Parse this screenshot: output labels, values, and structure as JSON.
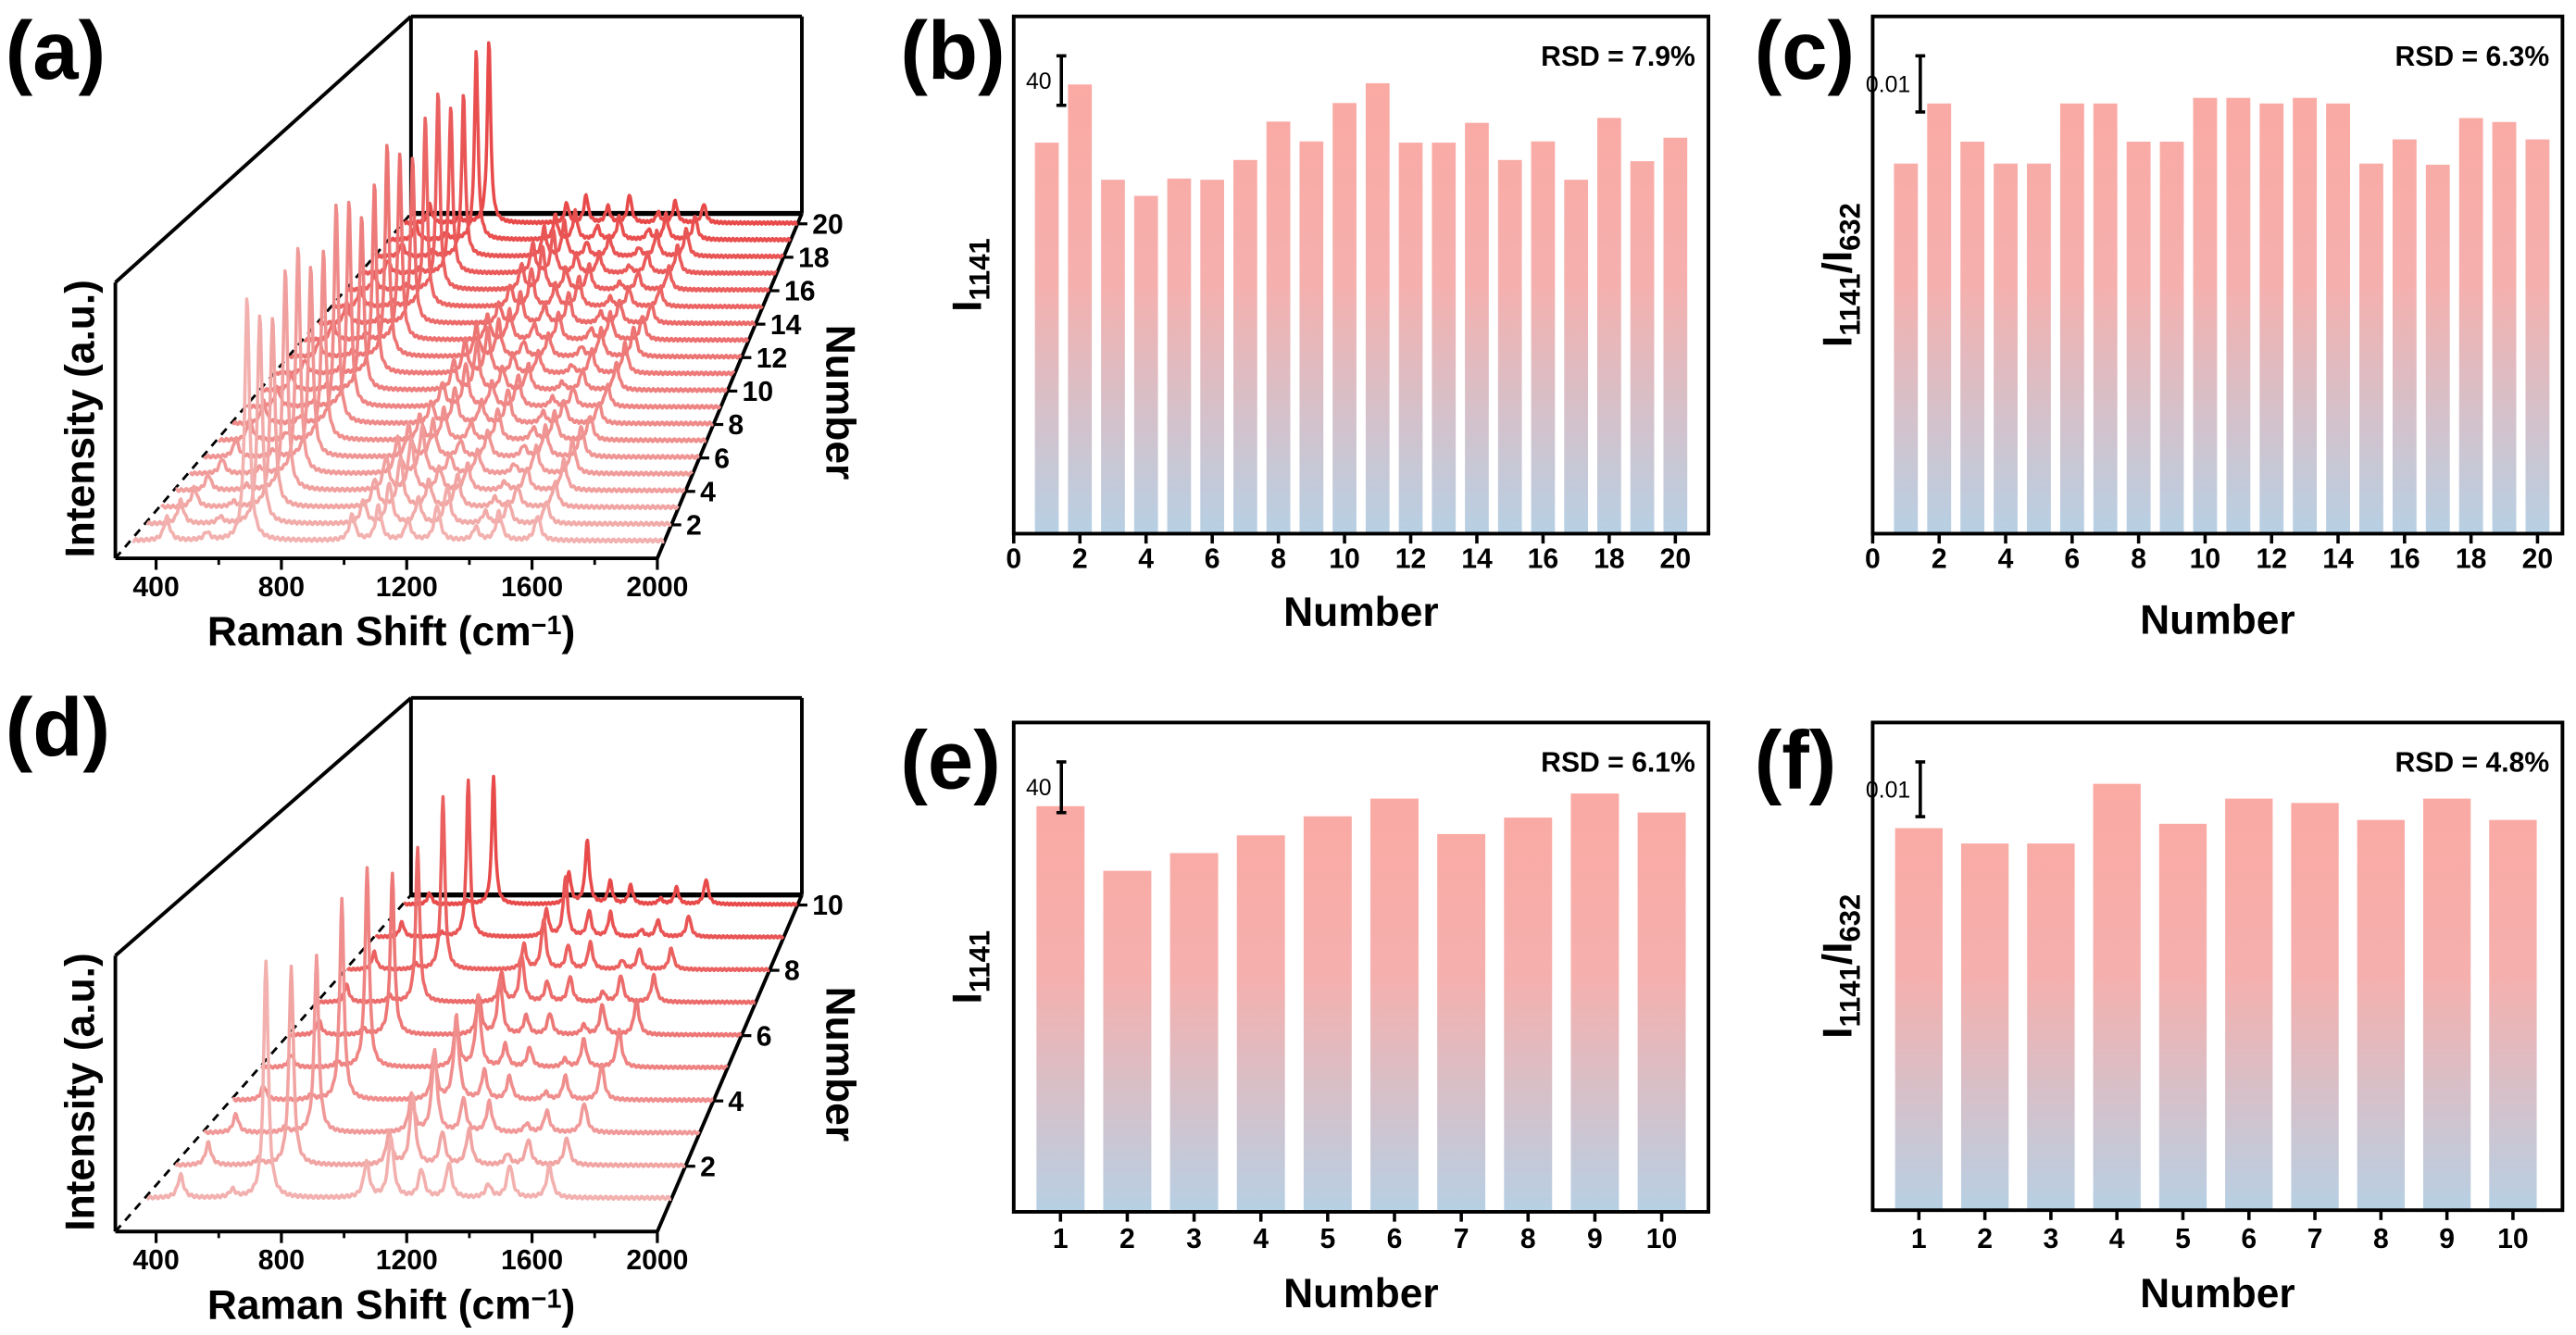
{
  "chart_data": [
    {
      "panel_label": "(a)",
      "type": "line",
      "subtype": "waterfall",
      "xlabel": [
        {
          "t": "Raman Shift (cm"
        },
        {
          "t": "−1",
          "sup": true
        },
        {
          "t": ")"
        }
      ],
      "ylabel": "Intensity (a.u.)",
      "zlabel": "Number",
      "xlim": [
        270,
        2000
      ],
      "x_ticks": [
        400,
        800,
        1200,
        1600,
        2000
      ],
      "x_minor_ticks": [
        600,
        1000,
        1400,
        1800
      ],
      "series_count": 20,
      "number_ticks": [
        2,
        4,
        6,
        8,
        10,
        12,
        14,
        16,
        18,
        20
      ],
      "peaks": [
        [
          390,
          0.09
        ],
        [
          520,
          0.03
        ],
        [
          650,
          1.0
        ],
        [
          990,
          0.14
        ],
        [
          1075,
          0.2
        ],
        [
          1170,
          0.1
        ],
        [
          1265,
          0.14
        ],
        [
          1390,
          0.05
        ],
        [
          1465,
          0.12
        ],
        [
          1590,
          0.13
        ]
      ],
      "colors": {
        "front": "#f2b0ae",
        "back": "#e84a4a"
      }
    },
    {
      "panel_label": "(b)",
      "type": "bar",
      "categories": [
        1,
        2,
        3,
        4,
        5,
        6,
        7,
        8,
        9,
        10,
        11,
        12,
        13,
        14,
        15,
        16,
        17,
        18,
        19,
        20
      ],
      "values": [
        316,
        363,
        286,
        273,
        287,
        286,
        302,
        333,
        317,
        348,
        364,
        316,
        316,
        332,
        302,
        317,
        286,
        336,
        301,
        320
      ],
      "xlabel": "Number",
      "ylabel": [
        {
          "t": "I"
        },
        {
          "t": "1141",
          "sub": true
        }
      ],
      "xlim": [
        0,
        21
      ],
      "ylim": [
        0,
        418
      ],
      "x_ticks": [
        0,
        2,
        4,
        6,
        8,
        10,
        12,
        14,
        16,
        18,
        20
      ],
      "scale_bar": {
        "label": "40",
        "value": 40
      },
      "annotation": "RSD = 7.9%",
      "colors": {
        "top": "#fba9a3",
        "bottom": "#b7d0e4"
      }
    },
    {
      "panel_label": "(c)",
      "type": "bar",
      "categories": [
        1,
        2,
        3,
        4,
        5,
        6,
        7,
        8,
        9,
        10,
        11,
        12,
        13,
        14,
        15,
        16,
        17,
        18,
        19,
        20
      ],
      "values": [
        0.0659,
        0.0766,
        0.0698,
        0.0659,
        0.0659,
        0.0766,
        0.0766,
        0.0698,
        0.0698,
        0.0776,
        0.0776,
        0.0766,
        0.0776,
        0.0766,
        0.0659,
        0.0702,
        0.0657,
        0.074,
        0.0733,
        0.0702
      ],
      "xlabel": "Number",
      "ylabel": [
        {
          "t": "I"
        },
        {
          "t": "1141",
          "sub": true
        },
        {
          "t": "/I"
        },
        {
          "t": "632",
          "sub": true
        }
      ],
      "xlim": [
        0,
        20.75
      ],
      "ylim": [
        0,
        0.0921
      ],
      "x_ticks": [
        0,
        2,
        4,
        6,
        8,
        10,
        12,
        14,
        16,
        18,
        20
      ],
      "scale_bar": {
        "label": "0.01",
        "value": 0.01
      },
      "annotation": "RSD = 6.3%",
      "colors": {
        "top": "#fba9a3",
        "bottom": "#b7d0e4"
      }
    },
    {
      "panel_label": "(d)",
      "type": "line",
      "subtype": "waterfall",
      "xlabel": [
        {
          "t": "Raman Shift (cm"
        },
        {
          "t": "−1",
          "sup": true
        },
        {
          "t": ")"
        }
      ],
      "ylabel": "Intensity (a.u.)",
      "zlabel": "Number",
      "xlim": [
        270,
        2000
      ],
      "x_ticks": [
        400,
        800,
        1200,
        1600,
        2000
      ],
      "x_minor_ticks": [
        600,
        1000,
        1400,
        1800
      ],
      "series_count": 10,
      "number_ticks": [
        2,
        4,
        6,
        8,
        10
      ],
      "peaks": [
        [
          390,
          0.09
        ],
        [
          560,
          0.03
        ],
        [
          670,
          1.0
        ],
        [
          1000,
          0.2
        ],
        [
          1080,
          0.36
        ],
        [
          1180,
          0.14
        ],
        [
          1270,
          0.14
        ],
        [
          1400,
          0.05
        ],
        [
          1470,
          0.14
        ],
        [
          1600,
          0.17
        ]
      ],
      "colors": {
        "front": "#f2b0ae",
        "back": "#e84a4a"
      }
    },
    {
      "panel_label": "(e)",
      "type": "bar",
      "categories": [
        1,
        2,
        3,
        4,
        5,
        6,
        7,
        8,
        9,
        10
      ],
      "values": [
        320,
        269,
        283,
        297,
        312,
        326,
        298,
        311,
        330,
        315
      ],
      "xlabel": "Number",
      "ylabel": [
        {
          "t": "I"
        },
        {
          "t": "1141",
          "sub": true
        }
      ],
      "xlim": [
        0.3,
        10.7
      ],
      "ylim": [
        0,
        386
      ],
      "x_ticks": [
        1,
        2,
        3,
        4,
        5,
        6,
        7,
        8,
        9,
        10
      ],
      "scale_bar": {
        "label": "40",
        "value": 40
      },
      "annotation": "RSD = 6.1%",
      "colors": {
        "top": "#fba9a3",
        "bottom": "#b7d0e4"
      }
    },
    {
      "panel_label": "(f)",
      "type": "bar",
      "categories": [
        1,
        2,
        3,
        4,
        5,
        6,
        7,
        8,
        9,
        10
      ],
      "values": [
        0.0698,
        0.067,
        0.067,
        0.0779,
        0.0706,
        0.0752,
        0.0744,
        0.0713,
        0.0752,
        0.0713
      ],
      "xlabel": "Number",
      "ylabel": [
        {
          "t": "I"
        },
        {
          "t": "1141",
          "sub": true
        },
        {
          "t": "/I"
        },
        {
          "t": "632",
          "sub": true
        }
      ],
      "xlim": [
        0.3,
        10.75
      ],
      "ylim": [
        0,
        0.0891
      ],
      "x_ticks": [
        1,
        2,
        3,
        4,
        5,
        6,
        7,
        8,
        9,
        10
      ],
      "scale_bar": {
        "label": "0.01",
        "value": 0.01
      },
      "annotation": "RSD = 4.8%",
      "colors": {
        "top": "#fba9a3",
        "bottom": "#b7d0e4"
      }
    }
  ]
}
